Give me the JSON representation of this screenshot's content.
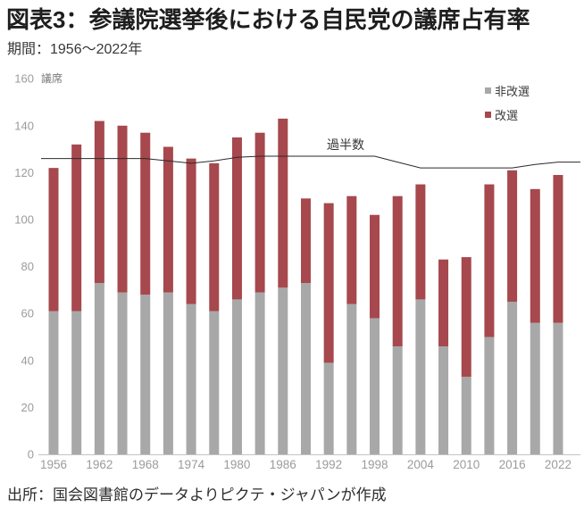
{
  "header": {
    "title": "図表3：参議院選挙後における自民党の議席占有率",
    "subtitle": "期間：1956～2022年"
  },
  "footer": {
    "source": "出所：国会図書館のデータよりピクテ・ジャパンが作成"
  },
  "chart_data": {
    "type": "bar",
    "stacked": true,
    "title": "図表3：参議院選挙後における自民党の議席占有率",
    "period": "1956～2022年",
    "unit_label": "議席",
    "ylabel": "議席",
    "ylim": [
      0,
      160
    ],
    "ytick_step": 20,
    "grid": false,
    "legend_position": "top-right",
    "categories": [
      "1956",
      "1959",
      "1962",
      "1965",
      "1968",
      "1971",
      "1974",
      "1977",
      "1980",
      "1983",
      "1986",
      "1989",
      "1992",
      "1995",
      "1998",
      "2001",
      "2004",
      "2007",
      "2010",
      "2013",
      "2016",
      "2019",
      "2022"
    ],
    "xtick_labels": [
      "1956",
      "1962",
      "1968",
      "1974",
      "1980",
      "1986",
      "1992",
      "1998",
      "2004",
      "2010",
      "2016",
      "2022"
    ],
    "series": [
      {
        "name": "非改選",
        "color": "#a8a8a8",
        "values": [
          61,
          61,
          73,
          69,
          68,
          69,
          64,
          61,
          66,
          69,
          71,
          73,
          39,
          64,
          58,
          46,
          66,
          46,
          33,
          50,
          65,
          56,
          56
        ]
      },
      {
        "name": "改選",
        "color": "#a6484d",
        "values": [
          61,
          71,
          69,
          71,
          69,
          62,
          62,
          63,
          69,
          68,
          72,
          36,
          68,
          46,
          44,
          64,
          49,
          37,
          51,
          65,
          56,
          57,
          63
        ]
      }
    ],
    "totals": [
      122,
      132,
      142,
      140,
      137,
      131,
      126,
      124,
      135,
      137,
      143,
      109,
      107,
      110,
      102,
      110,
      115,
      83,
      84,
      115,
      121,
      113,
      119
    ],
    "line": {
      "name": "過半数",
      "color": "#2a2a2a",
      "values": [
        126,
        126,
        126,
        126,
        126,
        125,
        124,
        125,
        126.5,
        127,
        127,
        127,
        127,
        127,
        127,
        124.5,
        122,
        122,
        122,
        122,
        122,
        123.5,
        124.5
      ]
    }
  },
  "colors": {
    "nonelected_gray": "#a8a8a8",
    "elected_red": "#a6484d",
    "axis_line": "#c4c4c4",
    "tick_text": "#9b9b9b",
    "majority_line": "#2a2a2a"
  }
}
